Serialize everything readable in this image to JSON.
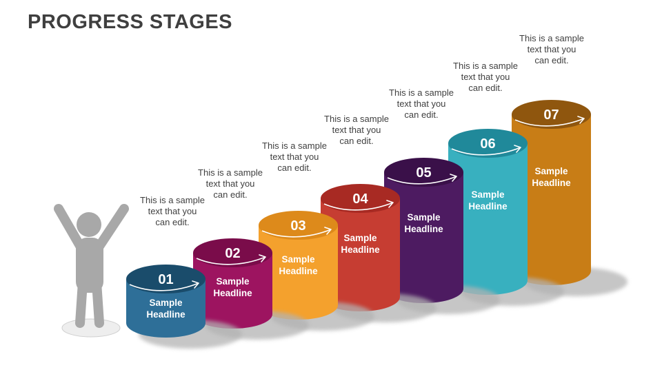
{
  "title": "PROGRESS STAGES",
  "colors": {
    "title_text": "#3f3f3f",
    "caption_text": "#3f3f3f",
    "headline_text": "#ffffff",
    "number_text": "#ffffff",
    "arrow": "#ffffff",
    "person": "#a8a8a8",
    "person_base": "#eeeeee",
    "shadow": "#b3b3b3",
    "background": "#ffffff"
  },
  "stages": [
    {
      "number": "01",
      "headline": "Sample Headline",
      "caption": "This is a sample\ntext that you\ncan edit.",
      "body_color": "#2e6f98",
      "top_color": "#1a4c6b"
    },
    {
      "number": "02",
      "headline": "Sample Headline",
      "caption": "This is a sample\ntext that you\ncan edit.",
      "body_color": "#9d1460",
      "top_color": "#7a0c4a"
    },
    {
      "number": "03",
      "headline": "Sample Headline",
      "caption": "This is a sample\ntext that you\ncan edit.",
      "body_color": "#f4a12d",
      "top_color": "#dd8a1b"
    },
    {
      "number": "04",
      "headline": "Sample Headline",
      "caption": "This is a sample\ntext that you\ncan edit.",
      "body_color": "#c63d32",
      "top_color": "#a82a23"
    },
    {
      "number": "05",
      "headline": "Sample Headline",
      "caption": "This is a sample\ntext that you\ncan edit.",
      "body_color": "#4d1b61",
      "top_color": "#3a1049"
    },
    {
      "number": "06",
      "headline": "Sample Headline",
      "caption": "This is a sample\ntext that you\ncan edit.",
      "body_color": "#38b0bf",
      "top_color": "#20899a"
    },
    {
      "number": "07",
      "headline": "Sample Headline",
      "caption": "This is a sample\ntext that you\ncan edit.",
      "body_color": "#c87d16",
      "top_color": "#8f560e"
    }
  ]
}
